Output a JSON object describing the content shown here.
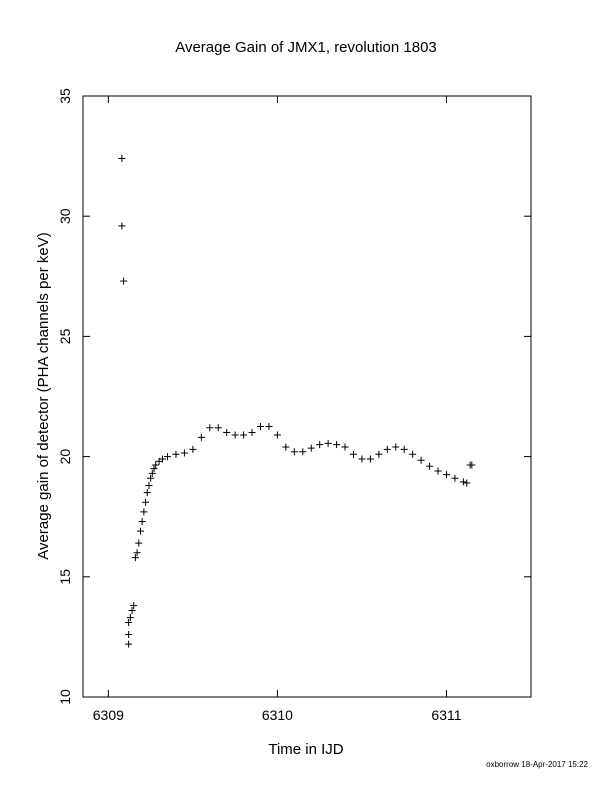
{
  "footer": "oxborrow 18-Apr-2017 15:22",
  "chart_data": {
    "type": "scatter",
    "title": "Average Gain of JMX1, revolution 1803",
    "xlabel": "Time in IJD",
    "ylabel": "Average gain of detector (PHA channels per keV)",
    "xlim": [
      6308.85,
      6311.5
    ],
    "ylim": [
      10,
      35
    ],
    "xticks": [
      6309,
      6310,
      6311
    ],
    "yticks": [
      10,
      15,
      20,
      25,
      30,
      35
    ],
    "marker": "+",
    "grid": false,
    "legend": "none",
    "points": [
      {
        "x": 6309.08,
        "y": 32.4
      },
      {
        "x": 6309.08,
        "y": 29.6
      },
      {
        "x": 6309.09,
        "y": 27.3
      },
      {
        "x": 6309.12,
        "y": 12.2
      },
      {
        "x": 6309.12,
        "y": 12.6
      },
      {
        "x": 6309.12,
        "y": 13.1
      },
      {
        "x": 6309.13,
        "y": 13.3
      },
      {
        "x": 6309.14,
        "y": 13.6
      },
      {
        "x": 6309.15,
        "y": 13.8
      },
      {
        "x": 6309.16,
        "y": 15.8
      },
      {
        "x": 6309.17,
        "y": 16.0
      },
      {
        "x": 6309.18,
        "y": 16.4
      },
      {
        "x": 6309.19,
        "y": 16.9
      },
      {
        "x": 6309.2,
        "y": 17.3
      },
      {
        "x": 6309.21,
        "y": 17.7
      },
      {
        "x": 6309.22,
        "y": 18.1
      },
      {
        "x": 6309.23,
        "y": 18.5
      },
      {
        "x": 6309.24,
        "y": 18.8
      },
      {
        "x": 6309.25,
        "y": 19.1
      },
      {
        "x": 6309.26,
        "y": 19.3
      },
      {
        "x": 6309.27,
        "y": 19.5
      },
      {
        "x": 6309.28,
        "y": 19.65
      },
      {
        "x": 6309.3,
        "y": 19.8
      },
      {
        "x": 6309.32,
        "y": 19.9
      },
      {
        "x": 6309.35,
        "y": 20.0
      },
      {
        "x": 6309.4,
        "y": 20.1
      },
      {
        "x": 6309.45,
        "y": 20.15
      },
      {
        "x": 6309.5,
        "y": 20.3
      },
      {
        "x": 6309.55,
        "y": 20.8
      },
      {
        "x": 6309.6,
        "y": 21.2
      },
      {
        "x": 6309.65,
        "y": 21.2
      },
      {
        "x": 6309.7,
        "y": 21.0
      },
      {
        "x": 6309.75,
        "y": 20.9
      },
      {
        "x": 6309.8,
        "y": 20.9
      },
      {
        "x": 6309.85,
        "y": 21.0
      },
      {
        "x": 6309.9,
        "y": 21.25
      },
      {
        "x": 6309.95,
        "y": 21.25
      },
      {
        "x": 6310.0,
        "y": 20.9
      },
      {
        "x": 6310.05,
        "y": 20.4
      },
      {
        "x": 6310.1,
        "y": 20.2
      },
      {
        "x": 6310.15,
        "y": 20.2
      },
      {
        "x": 6310.2,
        "y": 20.35
      },
      {
        "x": 6310.25,
        "y": 20.5
      },
      {
        "x": 6310.3,
        "y": 20.55
      },
      {
        "x": 6310.35,
        "y": 20.5
      },
      {
        "x": 6310.4,
        "y": 20.4
      },
      {
        "x": 6310.45,
        "y": 20.1
      },
      {
        "x": 6310.5,
        "y": 19.9
      },
      {
        "x": 6310.55,
        "y": 19.9
      },
      {
        "x": 6310.6,
        "y": 20.1
      },
      {
        "x": 6310.65,
        "y": 20.3
      },
      {
        "x": 6310.7,
        "y": 20.4
      },
      {
        "x": 6310.75,
        "y": 20.3
      },
      {
        "x": 6310.8,
        "y": 20.1
      },
      {
        "x": 6310.85,
        "y": 19.85
      },
      {
        "x": 6310.9,
        "y": 19.6
      },
      {
        "x": 6310.95,
        "y": 19.4
      },
      {
        "x": 6311.0,
        "y": 19.25
      },
      {
        "x": 6311.05,
        "y": 19.1
      },
      {
        "x": 6311.1,
        "y": 18.95
      },
      {
        "x": 6311.12,
        "y": 18.9
      },
      {
        "x": 6311.14,
        "y": 19.65
      },
      {
        "x": 6311.15,
        "y": 19.65
      }
    ]
  }
}
